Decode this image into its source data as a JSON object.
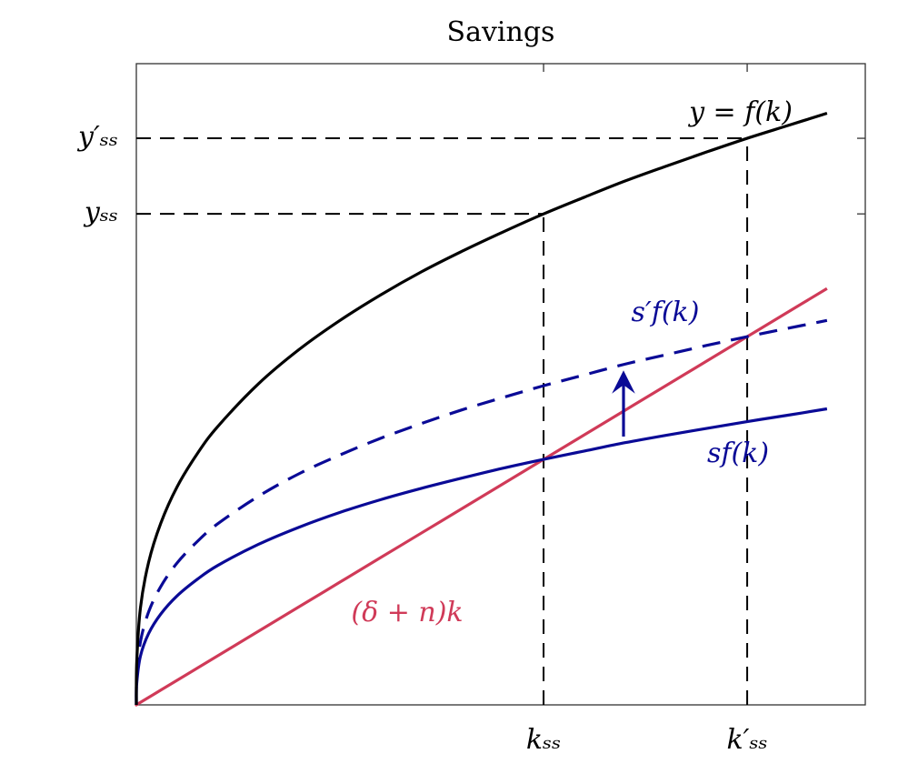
{
  "chart_data": {
    "type": "line",
    "title": "Savings",
    "x": [
      0,
      0.001,
      0.01,
      0.03,
      0.06,
      0.1,
      0.15,
      0.2,
      0.3,
      0.4,
      0.5,
      0.6,
      0.7,
      0.8,
      0.9,
      1,
      1.1,
      1.2,
      1.3,
      1.4,
      1.5,
      1.6,
      1.696
    ],
    "series": [
      {
        "name": "y = f(k)",
        "color": "#000000",
        "dashed": false,
        "values": [
          0,
          0.0873,
          0.197,
          0.29,
          0.37,
          0.444,
          0.512,
          0.567,
          0.654,
          0.724,
          0.783,
          0.835,
          0.882,
          0.924,
          0.963,
          1,
          1.034,
          1.067,
          1.097,
          1.126,
          1.154,
          1.18,
          1.205
        ]
      },
      {
        "name": "s′f(k)",
        "color": "#0a0a96",
        "dashed": true,
        "values": [
          0,
          0.057,
          0.128,
          0.189,
          0.241,
          0.289,
          0.333,
          0.369,
          0.425,
          0.471,
          0.509,
          0.543,
          0.573,
          0.601,
          0.626,
          0.65,
          0.672,
          0.694,
          0.713,
          0.732,
          0.75,
          0.767,
          0.783
        ]
      },
      {
        "name": "sf(k)",
        "color": "#0a0a96",
        "dashed": false,
        "values": [
          0,
          0.0437,
          0.099,
          0.145,
          0.185,
          0.222,
          0.256,
          0.284,
          0.327,
          0.362,
          0.392,
          0.418,
          0.441,
          0.462,
          0.482,
          0.5,
          0.517,
          0.534,
          0.549,
          0.563,
          0.577,
          0.59,
          0.603
        ]
      },
      {
        "name": "(δ + n)k",
        "color": "#d03a58",
        "dashed": false,
        "values": [
          0,
          0.0005,
          0.005,
          0.015,
          0.03,
          0.05,
          0.075,
          0.1,
          0.15,
          0.2,
          0.25,
          0.3,
          0.35,
          0.4,
          0.45,
          0.5,
          0.55,
          0.6,
          0.65,
          0.7,
          0.75,
          0.8,
          0.848
        ]
      }
    ],
    "xlim": [
      0,
      1.79
    ],
    "ylim": [
      0,
      1.306
    ],
    "xticks": [
      {
        "value": 1,
        "label": "kₛₛ"
      },
      {
        "value": 1.5,
        "label": "k′ₛₛ"
      }
    ],
    "yticks": [
      {
        "value": 1,
        "label": "yₛₛ"
      },
      {
        "value": 1.154,
        "label": "y′ₛₛ"
      }
    ]
  }
}
